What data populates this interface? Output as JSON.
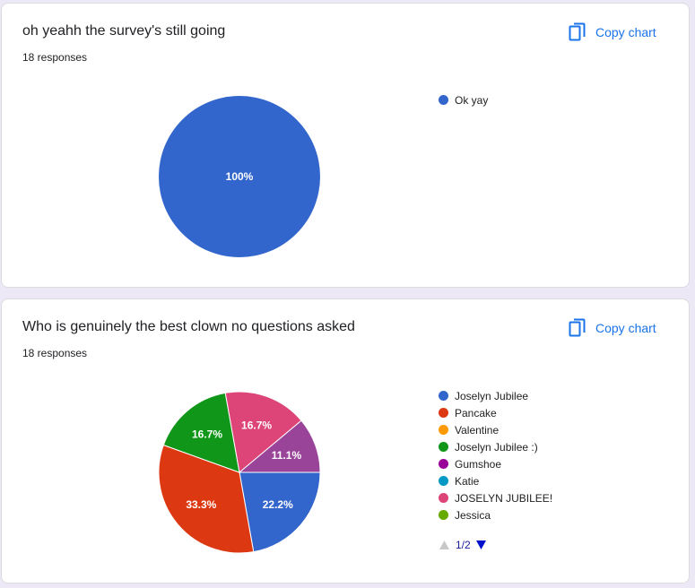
{
  "copy_label": "Copy chart",
  "cards": [
    {
      "title": "oh yeahh the survey's still going",
      "responses": "18 responses"
    },
    {
      "title": "Who is genuinely the best clown no questions asked",
      "responses": "18 responses",
      "pager": "1/2"
    }
  ],
  "chart_data": [
    {
      "type": "pie",
      "legend_position": "right",
      "slices": [
        {
          "label": "Ok yay",
          "value": 100,
          "display": "100%",
          "color": "#3366cc"
        }
      ]
    },
    {
      "type": "pie",
      "legend_position": "right",
      "slices": [
        {
          "label": "Joselyn Jubilee",
          "value": 22.2,
          "display": "22.2%",
          "color": "#3366cc"
        },
        {
          "label": "Pancake",
          "value": 33.3,
          "display": "33.3%",
          "color": "#dc3912"
        },
        {
          "label": "Valentine",
          "value": 0,
          "display": "",
          "color": "#ff9900"
        },
        {
          "label": "Joselyn Jubilee :)",
          "value": 16.7,
          "display": "16.7%",
          "color": "#109618"
        },
        {
          "label": "Gumshoe",
          "value": 0,
          "display": "",
          "color": "#990099"
        },
        {
          "label": "Katie",
          "value": 0,
          "display": "",
          "color": "#0099c6"
        },
        {
          "label": "JOSELYN JUBILEE!",
          "value": 16.7,
          "display": "16.7%",
          "color": "#dd4477"
        },
        {
          "label": "Jessica",
          "value": 0,
          "display": "",
          "color": "#66aa00"
        },
        {
          "label": "",
          "value": 11.1,
          "display": "11.1%",
          "color": "#994499"
        }
      ]
    }
  ]
}
